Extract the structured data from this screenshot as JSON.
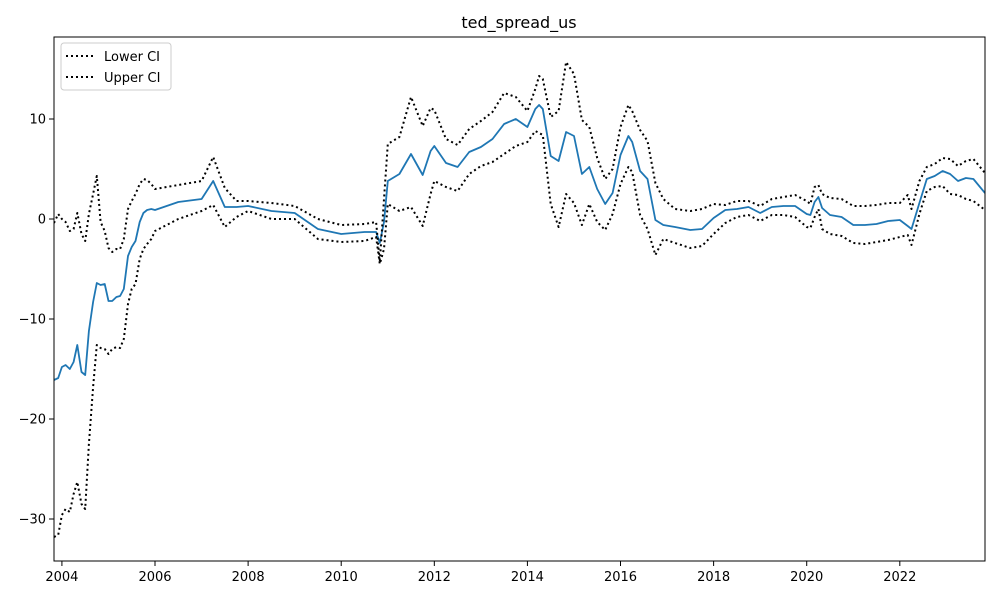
{
  "chart_data": {
    "type": "line",
    "title": "ted_spread_us",
    "xlabel": "",
    "ylabel": "",
    "xlim": [
      2003.83,
      2023.83
    ],
    "ylim": [
      -34.2,
      18.2
    ],
    "x_ticks": [
      2004,
      2006,
      2008,
      2010,
      2012,
      2014,
      2016,
      2018,
      2020,
      2022
    ],
    "x_tick_labels": [
      "2004",
      "2006",
      "2008",
      "2010",
      "2012",
      "2014",
      "2016",
      "2018",
      "2020",
      "2022"
    ],
    "y_ticks": [
      -30,
      -20,
      -10,
      0,
      10
    ],
    "y_tick_labels": [
      "−30",
      "−20",
      "−10",
      "0",
      "10"
    ],
    "grid": false,
    "legend": {
      "position": "top-left",
      "entries": [
        "Lower CI",
        "Upper CI"
      ]
    },
    "colors": {
      "main": "#1f77b4",
      "ci": "#000000"
    },
    "series": [
      {
        "role": "estimate",
        "x": [
          2003.83,
          2003.92,
          2004.0,
          2004.08,
          2004.17,
          2004.25,
          2004.33,
          2004.42,
          2004.5,
          2004.58,
          2004.67,
          2004.75,
          2004.83,
          2004.92,
          2005.0,
          2005.08,
          2005.17,
          2005.25,
          2005.33,
          2005.42,
          2005.5,
          2005.58,
          2005.67,
          2005.75,
          2005.83,
          2005.92,
          2006.0,
          2006.5,
          2007.0,
          2007.25,
          2007.5,
          2007.75,
          2008.0,
          2008.5,
          2009.0,
          2009.5,
          2010.0,
          2010.5,
          2010.75,
          2010.83,
          2010.92,
          2011.0,
          2011.25,
          2011.5,
          2011.75,
          2011.92,
          2012.0,
          2012.25,
          2012.5,
          2012.75,
          2013.0,
          2013.25,
          2013.5,
          2013.75,
          2014.0,
          2014.17,
          2014.25,
          2014.33,
          2014.5,
          2014.67,
          2014.83,
          2015.0,
          2015.17,
          2015.33,
          2015.5,
          2015.67,
          2015.83,
          2016.0,
          2016.17,
          2016.25,
          2016.42,
          2016.58,
          2016.75,
          2016.92,
          2017.17,
          2017.5,
          2017.75,
          2018.0,
          2018.25,
          2018.5,
          2018.75,
          2019.0,
          2019.25,
          2019.5,
          2019.75,
          2020.0,
          2020.08,
          2020.17,
          2020.25,
          2020.33,
          2020.5,
          2020.75,
          2021.0,
          2021.25,
          2021.5,
          2021.75,
          2022.0,
          2022.17,
          2022.25,
          2022.42,
          2022.58,
          2022.75,
          2022.92,
          2023.08,
          2023.25,
          2023.42,
          2023.58,
          2023.83
        ],
        "y": [
          -16.1,
          -15.9,
          -14.8,
          -14.6,
          -15.0,
          -14.3,
          -12.6,
          -15.3,
          -15.6,
          -11.2,
          -8.3,
          -6.4,
          -6.6,
          -6.5,
          -8.2,
          -8.2,
          -7.8,
          -7.7,
          -7.0,
          -3.7,
          -2.8,
          -2.2,
          -0.3,
          0.6,
          0.9,
          1.0,
          0.9,
          1.7,
          2.0,
          3.8,
          1.2,
          1.2,
          1.3,
          0.8,
          0.6,
          -1.0,
          -1.5,
          -1.3,
          -1.3,
          -2.4,
          -0.3,
          3.8,
          4.5,
          6.5,
          4.4,
          6.8,
          7.3,
          5.6,
          5.2,
          6.7,
          7.2,
          8.0,
          9.5,
          10.0,
          9.2,
          11.0,
          11.4,
          11.0,
          6.3,
          5.8,
          8.7,
          8.3,
          4.5,
          5.2,
          3.0,
          1.5,
          2.6,
          6.4,
          8.3,
          7.7,
          4.8,
          4.0,
          -0.1,
          -0.6,
          -0.8,
          -1.1,
          -1.0,
          0.1,
          0.9,
          1.0,
          1.2,
          0.6,
          1.2,
          1.3,
          1.3,
          0.5,
          0.4,
          1.7,
          2.2,
          1.1,
          0.4,
          0.2,
          -0.6,
          -0.6,
          -0.5,
          -0.2,
          -0.1,
          -0.7,
          -1.0,
          1.6,
          4.0,
          4.3,
          4.8,
          4.5,
          3.8,
          4.1,
          4.0,
          2.6
        ]
      },
      {
        "name": "Lower CI",
        "x": [
          2003.83,
          2003.92,
          2004.0,
          2004.08,
          2004.17,
          2004.25,
          2004.33,
          2004.42,
          2004.5,
          2004.58,
          2004.67,
          2004.75,
          2004.83,
          2004.92,
          2005.0,
          2005.08,
          2005.17,
          2005.25,
          2005.33,
          2005.42,
          2005.5,
          2005.58,
          2005.67,
          2005.75,
          2005.83,
          2005.92,
          2006.0,
          2006.5,
          2007.0,
          2007.25,
          2007.5,
          2007.75,
          2008.0,
          2008.5,
          2009.0,
          2009.5,
          2010.0,
          2010.5,
          2010.75,
          2010.83,
          2010.92,
          2011.0,
          2011.25,
          2011.5,
          2011.75,
          2011.92,
          2012.0,
          2012.25,
          2012.5,
          2012.75,
          2013.0,
          2013.25,
          2013.5,
          2013.75,
          2014.0,
          2014.17,
          2014.25,
          2014.33,
          2014.5,
          2014.67,
          2014.83,
          2015.0,
          2015.17,
          2015.33,
          2015.5,
          2015.67,
          2015.83,
          2016.0,
          2016.17,
          2016.25,
          2016.42,
          2016.58,
          2016.75,
          2016.92,
          2017.17,
          2017.5,
          2017.75,
          2018.0,
          2018.25,
          2018.5,
          2018.75,
          2019.0,
          2019.25,
          2019.5,
          2019.75,
          2020.0,
          2020.08,
          2020.17,
          2020.25,
          2020.33,
          2020.5,
          2020.75,
          2021.0,
          2021.25,
          2021.5,
          2021.75,
          2022.0,
          2022.17,
          2022.25,
          2022.42,
          2022.58,
          2022.75,
          2022.92,
          2023.08,
          2023.25,
          2023.42,
          2023.58,
          2023.83
        ],
        "y": [
          -31.8,
          -31.6,
          -29.6,
          -29.0,
          -29.3,
          -27.5,
          -26.3,
          -28.5,
          -29.0,
          -22.5,
          -16.8,
          -12.6,
          -12.9,
          -13.0,
          -13.5,
          -13.0,
          -12.8,
          -12.9,
          -12.0,
          -8.5,
          -7.0,
          -6.5,
          -4.0,
          -3.0,
          -2.5,
          -2.0,
          -1.2,
          0.0,
          0.8,
          1.4,
          -0.8,
          0.2,
          0.8,
          0.0,
          0.0,
          -2.0,
          -2.3,
          -2.2,
          -1.8,
          -4.5,
          -3.0,
          1.5,
          0.8,
          1.2,
          -0.7,
          2.5,
          3.8,
          3.2,
          2.8,
          4.5,
          5.3,
          5.7,
          6.5,
          7.3,
          7.7,
          8.8,
          8.6,
          8.4,
          1.5,
          -0.8,
          2.5,
          1.6,
          -0.6,
          1.5,
          -0.3,
          -1.1,
          0.5,
          3.5,
          5.2,
          4.7,
          0.4,
          -1.0,
          -3.6,
          -2.0,
          -2.4,
          -2.9,
          -2.7,
          -1.5,
          -0.4,
          0.2,
          0.4,
          -0.2,
          0.4,
          0.4,
          0.2,
          -0.8,
          -0.9,
          0.2,
          1.0,
          -1.0,
          -1.5,
          -1.7,
          -2.4,
          -2.5,
          -2.3,
          -2.1,
          -1.8,
          -1.6,
          -2.6,
          0.5,
          2.8,
          3.2,
          3.3,
          2.5,
          2.4,
          2.0,
          1.8,
          0.9
        ]
      },
      {
        "name": "Upper CI",
        "x": [
          2003.83,
          2003.92,
          2004.0,
          2004.08,
          2004.17,
          2004.25,
          2004.33,
          2004.42,
          2004.5,
          2004.58,
          2004.67,
          2004.75,
          2004.83,
          2004.92,
          2005.0,
          2005.08,
          2005.17,
          2005.25,
          2005.33,
          2005.42,
          2005.5,
          2005.58,
          2005.67,
          2005.75,
          2005.83,
          2005.92,
          2006.0,
          2006.5,
          2007.0,
          2007.25,
          2007.5,
          2007.75,
          2008.0,
          2008.5,
          2009.0,
          2009.5,
          2010.0,
          2010.5,
          2010.75,
          2010.83,
          2010.92,
          2011.0,
          2011.25,
          2011.5,
          2011.75,
          2011.92,
          2012.0,
          2012.25,
          2012.5,
          2012.75,
          2013.0,
          2013.25,
          2013.5,
          2013.75,
          2014.0,
          2014.17,
          2014.25,
          2014.33,
          2014.5,
          2014.67,
          2014.83,
          2015.0,
          2015.17,
          2015.33,
          2015.5,
          2015.67,
          2015.83,
          2016.0,
          2016.17,
          2016.25,
          2016.42,
          2016.58,
          2016.75,
          2016.92,
          2017.17,
          2017.5,
          2017.75,
          2018.0,
          2018.25,
          2018.5,
          2018.75,
          2019.0,
          2019.25,
          2019.5,
          2019.75,
          2020.0,
          2020.08,
          2020.17,
          2020.25,
          2020.33,
          2020.5,
          2020.75,
          2021.0,
          2021.25,
          2021.5,
          2021.75,
          2022.0,
          2022.17,
          2022.25,
          2022.42,
          2022.58,
          2022.75,
          2022.92,
          2023.08,
          2023.25,
          2023.42,
          2023.58,
          2023.83
        ],
        "y": [
          -0.4,
          0.5,
          0.0,
          -0.3,
          -1.2,
          -1.0,
          0.6,
          -1.5,
          -2.2,
          0.5,
          2.5,
          4.3,
          -0.3,
          -1.2,
          -2.9,
          -3.3,
          -3.0,
          -3.0,
          -2.0,
          1.0,
          1.8,
          2.5,
          3.5,
          4.0,
          3.9,
          3.5,
          3.0,
          3.4,
          3.8,
          6.2,
          3.1,
          1.8,
          1.8,
          1.6,
          1.3,
          0.0,
          -0.6,
          -0.5,
          -0.3,
          -4.3,
          2.0,
          7.5,
          8.2,
          12.2,
          9.3,
          11.1,
          10.9,
          8.0,
          7.4,
          9.0,
          9.8,
          10.7,
          12.6,
          12.2,
          10.8,
          13.0,
          14.3,
          14.0,
          10.2,
          10.8,
          15.7,
          14.5,
          9.9,
          9.2,
          6.1,
          4.0,
          5.0,
          9.2,
          11.4,
          10.8,
          8.9,
          7.8,
          3.6,
          2.0,
          1.0,
          0.8,
          1.0,
          1.5,
          1.4,
          1.8,
          1.8,
          1.3,
          2.0,
          2.2,
          2.4,
          1.8,
          1.5,
          3.2,
          3.4,
          2.5,
          2.1,
          2.0,
          1.3,
          1.3,
          1.4,
          1.6,
          1.6,
          2.4,
          1.0,
          3.8,
          5.2,
          5.5,
          6.1,
          6.0,
          5.3,
          5.8,
          6.0,
          4.6
        ]
      }
    ]
  }
}
